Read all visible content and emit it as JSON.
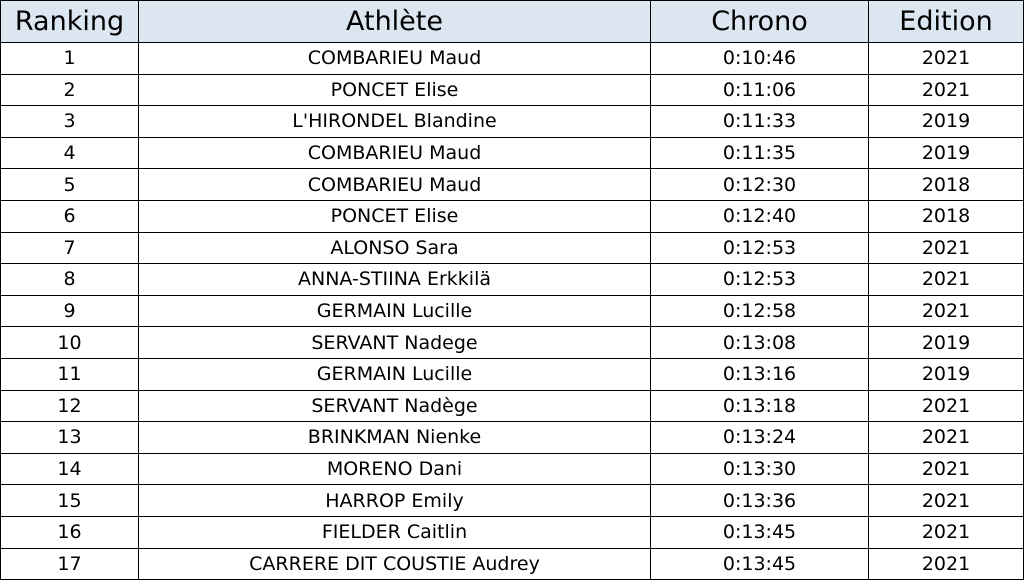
{
  "table": {
    "header": [
      "Ranking",
      "Athlète",
      "Chrono",
      "Edition"
    ],
    "rows": [
      [
        1,
        "COMBARIEU Maud",
        "0:10:46",
        2021
      ],
      [
        2,
        "PONCET Elise",
        "0:11:06",
        2021
      ],
      [
        3,
        "L'HIRONDEL Blandine",
        "0:11:33",
        2019
      ],
      [
        4,
        "COMBARIEU Maud",
        "0:11:35",
        2019
      ],
      [
        5,
        "COMBARIEU Maud",
        "0:12:30",
        2018
      ],
      [
        6,
        "PONCET Elise",
        "0:12:40",
        2018
      ],
      [
        7,
        "ALONSO Sara",
        "0:12:53",
        2021
      ],
      [
        8,
        "ANNA-STIINA Erkkilä",
        "0:12:53",
        2021
      ],
      [
        9,
        "GERMAIN Lucille",
        "0:12:58",
        2021
      ],
      [
        10,
        "SERVANT Nadege",
        "0:13:08",
        2019
      ],
      [
        11,
        "GERMAIN Lucille",
        "0:13:16",
        2019
      ],
      [
        12,
        "SERVANT Nadège",
        "0:13:18",
        2021
      ],
      [
        13,
        "BRINKMAN Nienke",
        "0:13:24",
        2021
      ],
      [
        14,
        "MORENO Dani",
        "0:13:30",
        2021
      ],
      [
        15,
        "HARROP Emily",
        "0:13:36",
        2021
      ],
      [
        16,
        "FIELDER Caitlin",
        "0:13:45",
        2021
      ],
      [
        17,
        "CARRERE DIT COUSTIE Audrey",
        "0:13:45",
        2021
      ]
    ]
  }
}
